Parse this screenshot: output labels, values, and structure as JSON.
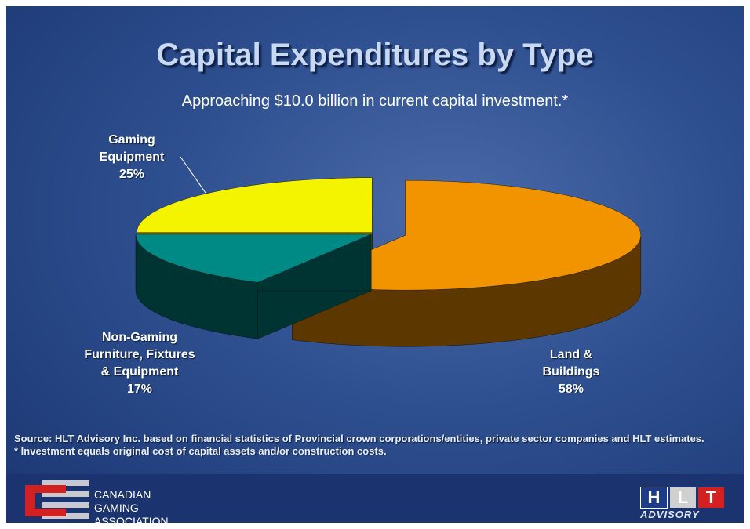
{
  "chart_data": {
    "type": "pie",
    "title": "Capital Expenditures by Type",
    "subtitle": "Approaching $10.0 billion in current capital investment.*",
    "categories": [
      "Land & Buildings",
      "Non-Gaming Furniture, Fixtures & Equipment",
      "Gaming Equipment"
    ],
    "values": [
      58,
      17,
      25
    ],
    "value_labels": [
      "58%",
      "17%",
      "25%"
    ],
    "colors": [
      "#f29300",
      "#008a86",
      "#f4f400"
    ]
  },
  "footer": {
    "source": "Source: HLT Advisory Inc. based on financial statistics of Provincial crown corporations/entities, private sector companies and HLT estimates.",
    "note": "* Investment equals original cost of capital assets and/or construction costs.",
    "association": [
      "CANADIAN",
      "GAMING",
      "ASSOCIATION"
    ],
    "advisory_letters": [
      "H",
      "L",
      "T"
    ],
    "advisory": "ADVISORY"
  }
}
